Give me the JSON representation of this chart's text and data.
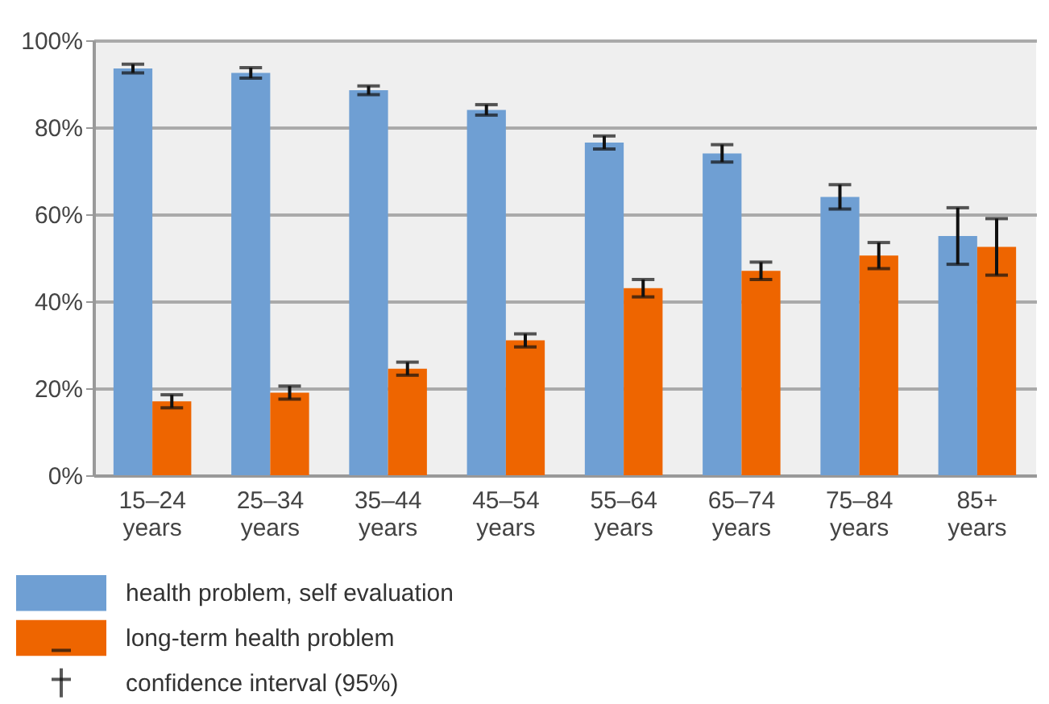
{
  "chart_data": {
    "type": "bar",
    "categories": [
      "15–24 years",
      "25–34 years",
      "35–44 years",
      "45–54 years",
      "55–64 years",
      "65–74 years",
      "75–84 years",
      "85+ years"
    ],
    "series": [
      {
        "name": "health problem, self evaluation",
        "color": "#6f9fd3",
        "values": [
          93.5,
          92.5,
          88.5,
          84,
          76.5,
          74,
          64,
          55
        ],
        "errors": [
          1,
          1.2,
          1,
          1.2,
          1.5,
          2,
          2.8,
          6.5
        ]
      },
      {
        "name": "long-term health problem",
        "color": "#ee6500",
        "values": [
          17,
          19,
          24.5,
          31,
          43,
          47,
          50.5,
          52.5
        ],
        "errors": [
          1.5,
          1.5,
          1.5,
          1.5,
          2,
          2,
          3,
          6.5
        ]
      }
    ],
    "ylim": [
      0,
      100
    ],
    "yticks": [
      {
        "value": 0,
        "label": "0%"
      },
      {
        "value": 20,
        "label": "20%"
      },
      {
        "value": 40,
        "label": "40%"
      },
      {
        "value": 60,
        "label": "60%"
      },
      {
        "value": 80,
        "label": "80%"
      },
      {
        "value": 100,
        "label": "100%"
      }
    ],
    "grid": "y",
    "legend": "bottom",
    "annotations": [
      "confidence interval (95%)"
    ]
  }
}
